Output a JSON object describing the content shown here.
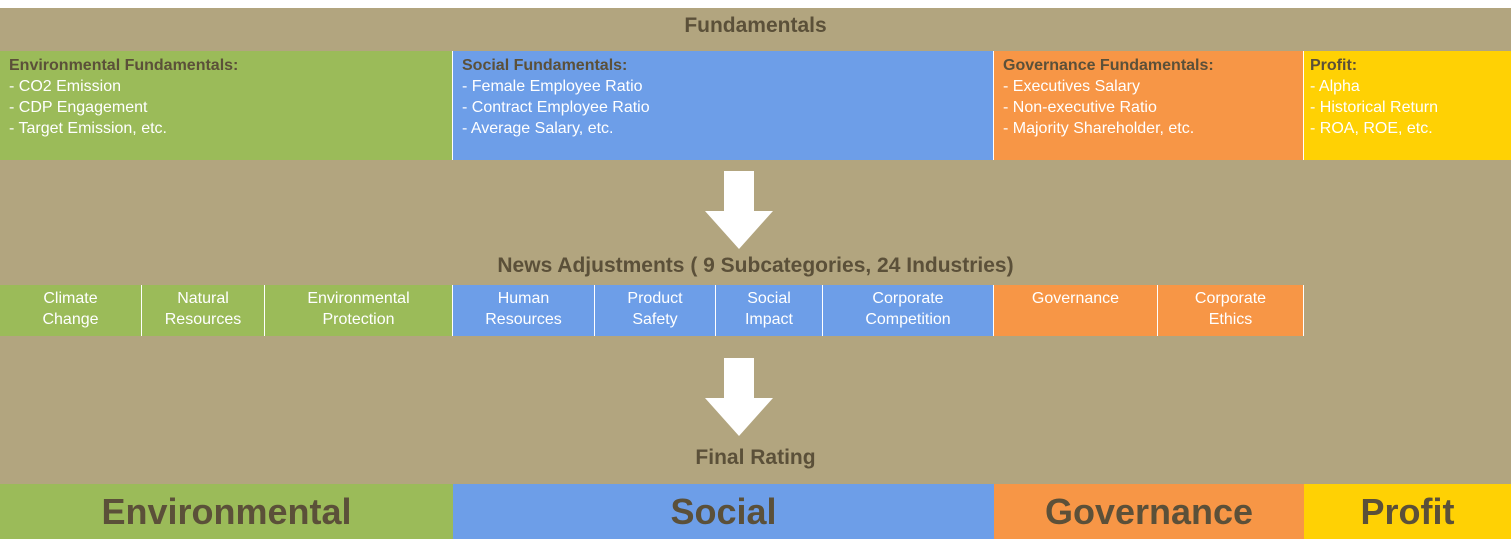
{
  "colors": {
    "background": "#b2a57f",
    "environmental": "#9bbb59",
    "social": "#6d9ee8",
    "governance": "#f79646",
    "profit": "#ffd104",
    "heading_text": "#5b5039",
    "arrow": "#ffffff"
  },
  "fundamentals": {
    "title": "Fundamentals",
    "blocks": [
      {
        "heading": "Environmental Fundamentals:",
        "items": [
          "- CO2 Emission",
          "- CDP Engagement",
          "- Target Emission, etc."
        ]
      },
      {
        "heading": "Social Fundamentals:",
        "items": [
          "- Female Employee Ratio",
          "- Contract Employee Ratio",
          "- Average Salary, etc."
        ]
      },
      {
        "heading": "Governance Fundamentals:",
        "items": [
          "- Executives Salary",
          "- Non-executive Ratio",
          "- Majority Shareholder, etc."
        ]
      },
      {
        "heading": "Profit:",
        "items": [
          "- Alpha",
          "- Historical Return",
          "- ROA, ROE, etc."
        ]
      }
    ]
  },
  "arrows": [
    "down-arrow-icon",
    "down-arrow-icon"
  ],
  "news_adjustments": {
    "title": "News Adjustments ( 9 Subcategories, 24 Industries)",
    "subcategories": [
      {
        "line1": "Climate",
        "line2": "Change"
      },
      {
        "line1": "Natural",
        "line2": "Resources"
      },
      {
        "line1": "Environmental",
        "line2": "Protection"
      },
      {
        "line1": "Human",
        "line2": "Resources"
      },
      {
        "line1": "Product",
        "line2": "Safety"
      },
      {
        "line1": "Social",
        "line2": "Impact"
      },
      {
        "line1": "Corporate",
        "line2": "Competition"
      },
      {
        "line1": "Governance",
        "line2": ""
      },
      {
        "line1": "Corporate",
        "line2": "Ethics"
      }
    ]
  },
  "final_rating": {
    "title": "Final Rating",
    "categories": [
      "Environmental",
      "Social",
      "Governance",
      "Profit"
    ]
  }
}
